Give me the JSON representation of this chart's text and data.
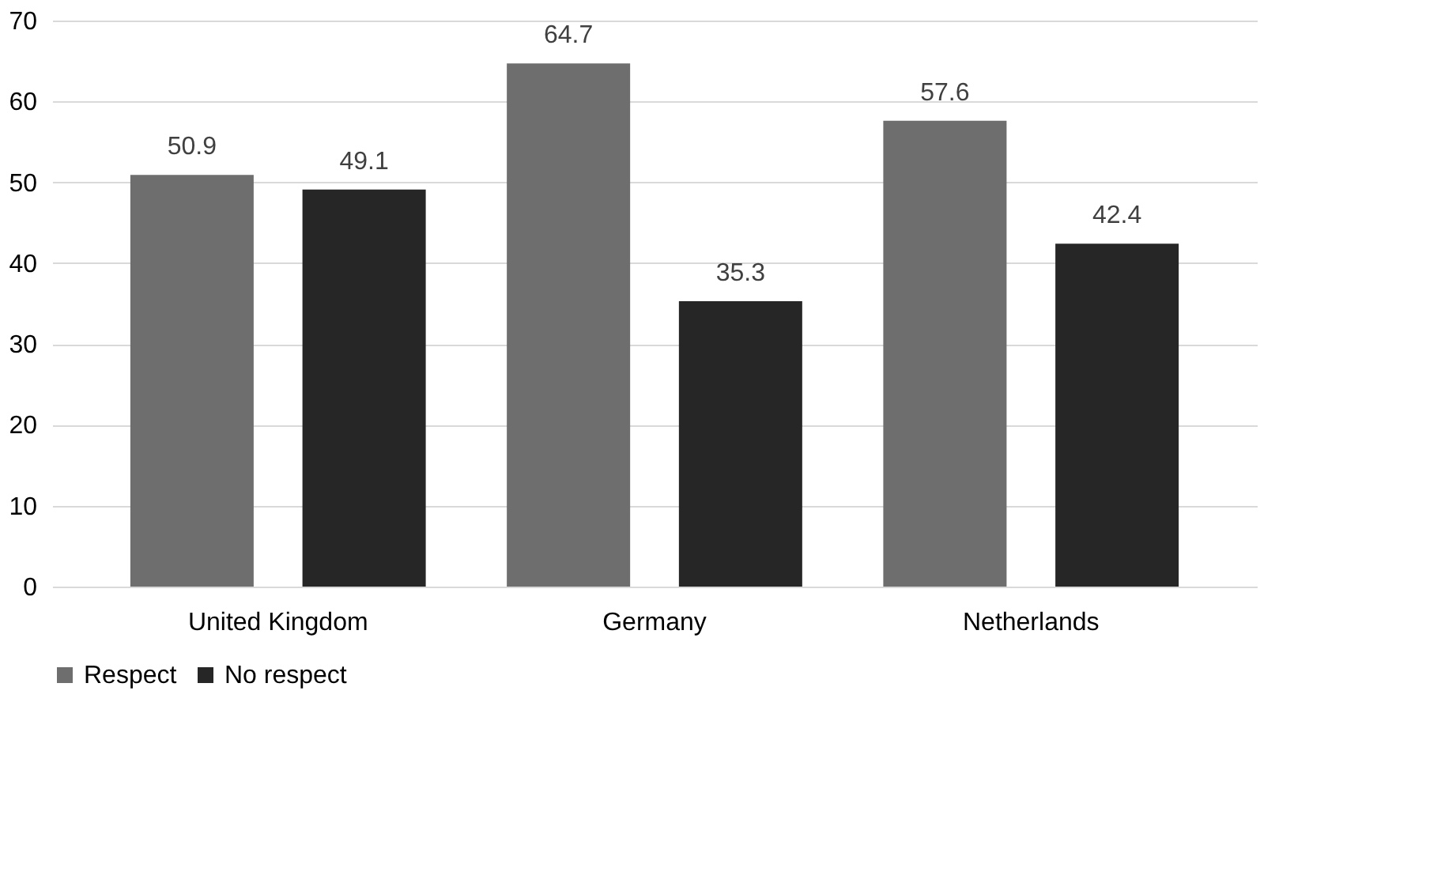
{
  "chart_data": {
    "type": "bar",
    "categories": [
      "United Kingdom",
      "Germany",
      "Netherlands"
    ],
    "series": [
      {
        "name": "Respect",
        "color": "#6e6e6e",
        "values": [
          50.9,
          64.7,
          57.6
        ]
      },
      {
        "name": "No respect",
        "color": "#262626",
        "values": [
          49.1,
          35.3,
          42.4
        ]
      }
    ],
    "ylim": [
      0,
      70
    ],
    "yticks": [
      0,
      10,
      20,
      30,
      40,
      50,
      60,
      70
    ],
    "grid": "y",
    "legend": "bottom",
    "data_labels": true
  }
}
